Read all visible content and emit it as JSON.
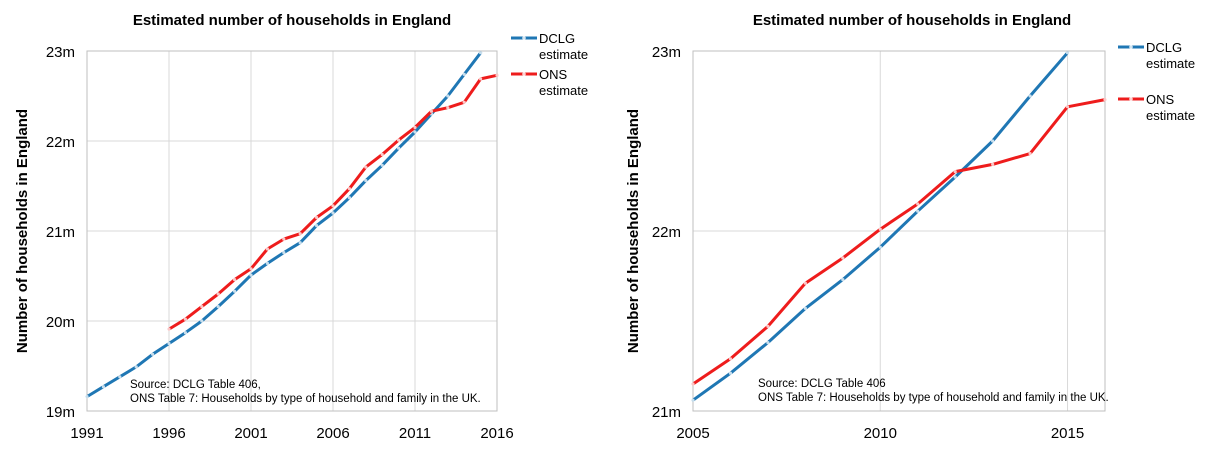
{
  "chart_data": [
    {
      "type": "line",
      "title": "Estimated number of households in England",
      "ylabel": "Number of households in England",
      "xlabel": "",
      "xlim": [
        1991,
        2016
      ],
      "ylim": [
        19,
        23
      ],
      "xticks": [
        1991,
        1996,
        2001,
        2006,
        2011,
        2016
      ],
      "yticks": [
        19,
        20,
        21,
        22,
        23
      ],
      "ytick_labels": [
        "19m",
        "20m",
        "21m",
        "22m",
        "23m"
      ],
      "grid": true,
      "legend_position": "outside-right",
      "source_lines": [
        "Source: DCLG Table 406,",
        "ONS Table 7: Households by type of household and family in the UK."
      ],
      "series": [
        {
          "name_lines": [
            "DCLG",
            "estimate"
          ],
          "color": "#1f77b4",
          "x": [
            1991,
            1992,
            1993,
            1994,
            1995,
            1996,
            1997,
            1998,
            1999,
            2000,
            2001,
            2002,
            2003,
            2004,
            2005,
            2006,
            2007,
            2008,
            2009,
            2010,
            2011,
            2012,
            2013,
            2014,
            2015
          ],
          "y": [
            19.16,
            19.27,
            19.38,
            19.49,
            19.63,
            19.75,
            19.87,
            20.0,
            20.16,
            20.33,
            20.51,
            20.64,
            20.76,
            20.87,
            21.06,
            21.2,
            21.37,
            21.56,
            21.73,
            21.92,
            22.1,
            22.3,
            22.5,
            22.74,
            22.98
          ]
        },
        {
          "name_lines": [
            "ONS",
            "estimate"
          ],
          "color": "#ee1c1c",
          "x": [
            1996,
            1997,
            1998,
            1999,
            2000,
            2001,
            2002,
            2003,
            2004,
            2005,
            2006,
            2007,
            2008,
            2009,
            2010,
            2011,
            2012,
            2013,
            2014,
            2015,
            2016
          ],
          "y": [
            19.91,
            20.02,
            20.16,
            20.3,
            20.46,
            20.58,
            20.8,
            20.91,
            20.97,
            21.15,
            21.28,
            21.47,
            21.71,
            21.85,
            22.01,
            22.15,
            22.33,
            22.37,
            22.43,
            22.69,
            22.73
          ]
        }
      ]
    },
    {
      "type": "line",
      "title": "Estimated number of households in England",
      "ylabel": "Number of households in England",
      "xlabel": "",
      "xlim": [
        2005,
        2016
      ],
      "ylim": [
        21,
        23
      ],
      "xticks": [
        2005,
        2010,
        2015
      ],
      "yticks": [
        21,
        22,
        23
      ],
      "ytick_labels": [
        "21m",
        "22m",
        "23m"
      ],
      "grid": true,
      "legend_position": "outside-right",
      "source_lines": [
        "Source: DCLG Table 406",
        "ONS Table 7: Households by type of household and family in the UK."
      ],
      "series": [
        {
          "name_lines": [
            "DCLG",
            "estimate"
          ],
          "color": "#1f77b4",
          "x": [
            2005,
            2006,
            2007,
            2008,
            2009,
            2010,
            2011,
            2012,
            2013,
            2014,
            2015
          ],
          "y": [
            21.06,
            21.21,
            21.38,
            21.57,
            21.73,
            21.91,
            22.11,
            22.3,
            22.5,
            22.75,
            22.99
          ]
        },
        {
          "name_lines": [
            "ONS",
            "estimate"
          ],
          "color": "#ee1c1c",
          "x": [
            2005,
            2006,
            2007,
            2008,
            2009,
            2010,
            2011,
            2012,
            2013,
            2014,
            2015,
            2016
          ],
          "y": [
            21.15,
            21.29,
            21.47,
            21.71,
            21.85,
            22.01,
            22.15,
            22.33,
            22.37,
            22.43,
            22.69,
            22.73
          ]
        }
      ]
    }
  ]
}
